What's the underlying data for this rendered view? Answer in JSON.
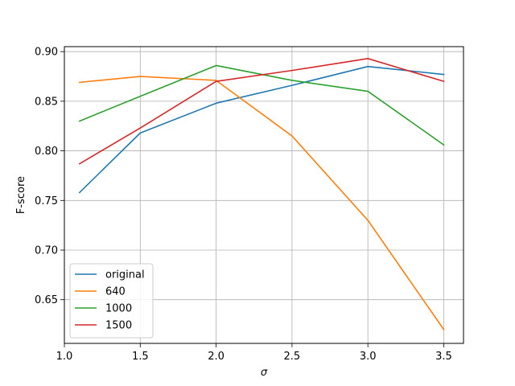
{
  "chart_data": {
    "type": "line",
    "title": "",
    "xlabel": "σ",
    "ylabel": "F-score",
    "x": [
      1.1,
      1.5,
      2.0,
      2.5,
      3.0,
      3.5
    ],
    "xlim": [
      1.0,
      3.63
    ],
    "ylim": [
      0.606,
      0.905
    ],
    "xticks": [
      1.0,
      1.5,
      2.0,
      2.5,
      3.0,
      3.5
    ],
    "xtick_labels": [
      "1.0",
      "1.5",
      "2.0",
      "2.5",
      "3.0",
      "3.5"
    ],
    "yticks": [
      0.65,
      0.7,
      0.75,
      0.8,
      0.85,
      0.9
    ],
    "ytick_labels": [
      "0.65",
      "0.70",
      "0.75",
      "0.80",
      "0.85",
      "0.90"
    ],
    "grid": true,
    "legend_position": "lower-left",
    "series": [
      {
        "name": "original",
        "color": "#1f77b4",
        "values": [
          0.758,
          0.818,
          0.848,
          0.866,
          0.885,
          0.877
        ]
      },
      {
        "name": "640",
        "color": "#ff7f0e",
        "values": [
          0.869,
          0.875,
          0.871,
          0.815,
          0.73,
          0.62
        ]
      },
      {
        "name": "1000",
        "color": "#2ca02c",
        "values": [
          0.83,
          0.855,
          0.886,
          0.871,
          0.86,
          0.806
        ]
      },
      {
        "name": "1500",
        "color": "#d62728",
        "values": [
          0.787,
          0.823,
          0.87,
          0.881,
          0.893,
          0.87
        ]
      }
    ]
  }
}
